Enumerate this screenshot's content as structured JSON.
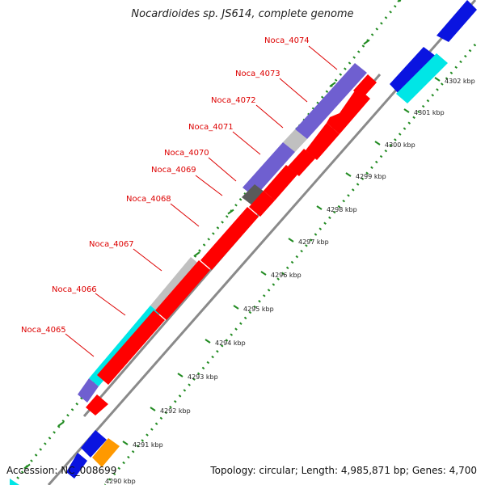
{
  "title": "Nocardioides sp. JS614, complete genome",
  "accession": "Accession: NC_008699",
  "topology": "Topology: circular; Length: 4,985,871 bp; Genes: 4,700",
  "colors": {
    "forward_gene": "#6f5fd0",
    "reverse_gene": "#ff0000",
    "other_strand": "#0a14e0",
    "cyan": "#00e6e6",
    "grey": "#c0c0c0",
    "dark_grey": "#5a5a5a",
    "orange": "#ff9900",
    "backbone": "#8a8a8a",
    "dots": "#228b22",
    "label_red": "#dd0000"
  },
  "gene_labels": [
    {
      "name": "Noca_4074"
    },
    {
      "name": "Noca_4073"
    },
    {
      "name": "Noca_4072"
    },
    {
      "name": "Noca_4071"
    },
    {
      "name": "Noca_4070"
    },
    {
      "name": "Noca_4069"
    },
    {
      "name": "Noca_4068"
    },
    {
      "name": "Noca_4067"
    },
    {
      "name": "Noca_4066"
    },
    {
      "name": "Noca_4065"
    }
  ],
  "kbp_ticks": [
    "4291 kbp",
    "4292 kbp",
    "4293 kbp",
    "4294 kbp",
    "4295 kbp",
    "4296 kbp",
    "4297 kbp",
    "4298 kbp",
    "4299 kbp",
    "4300 kbp",
    "4301 kbp",
    "4302 kbp"
  ],
  "partial_tick": "4290 kbp"
}
